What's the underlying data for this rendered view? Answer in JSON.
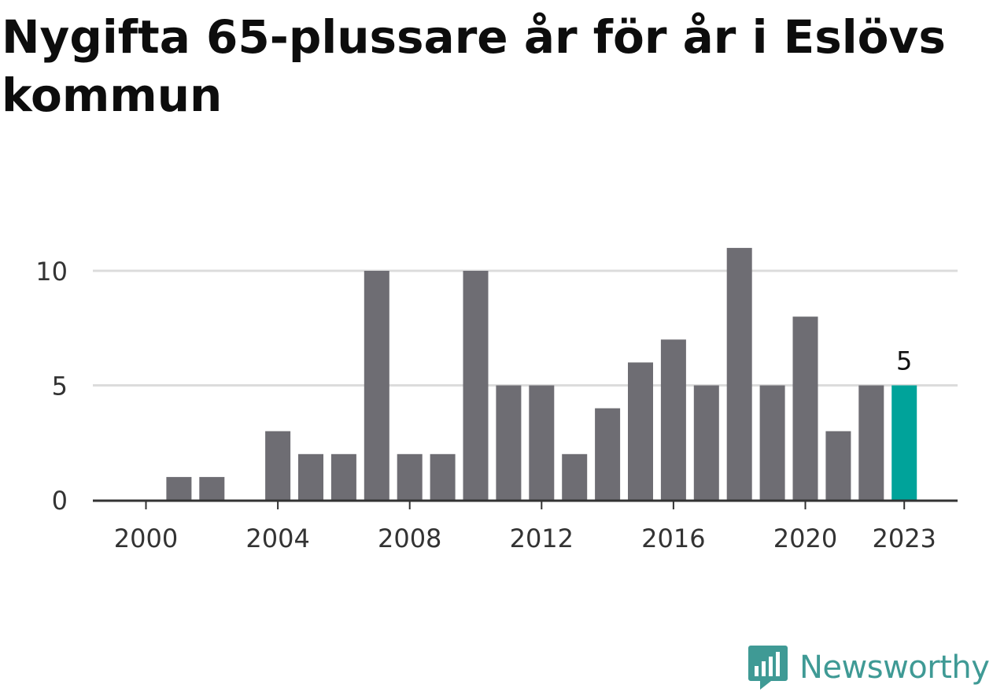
{
  "title": "Nygifta 65-plussare år för år i Eslövs kommun",
  "chart_data": {
    "type": "bar",
    "title": "Nygifta 65-plussare år för år i Eslövs kommun",
    "xlabel": "",
    "ylabel": "",
    "categories": [
      "2000",
      "2001",
      "2002",
      "2003",
      "2004",
      "2005",
      "2006",
      "2007",
      "2008",
      "2009",
      "2010",
      "2011",
      "2012",
      "2013",
      "2014",
      "2015",
      "2016",
      "2017",
      "2018",
      "2019",
      "2020",
      "2021",
      "2022",
      "2023"
    ],
    "values": [
      0,
      1,
      1,
      0,
      3,
      2,
      2,
      10,
      2,
      2,
      10,
      5,
      5,
      2,
      4,
      6,
      7,
      5,
      11,
      5,
      8,
      3,
      5,
      5
    ],
    "x_tick_labels": [
      "2000",
      "2004",
      "2008",
      "2012",
      "2016",
      "2020",
      "2023"
    ],
    "y_ticks": [
      0,
      5,
      10
    ],
    "ylim": [
      0,
      11
    ],
    "highlight_category": "2023",
    "highlight_label": "5",
    "grid": true,
    "legend": "none"
  },
  "colors": {
    "bar": "#6e6d73",
    "highlight": "#00a39a",
    "grid": "#dcdcdc",
    "axis": "#333333",
    "tick_text": "#333333",
    "brand": "#3f9a95"
  },
  "brand": {
    "name": "Newsworthy",
    "icon": "newsworthy-logo-icon"
  }
}
